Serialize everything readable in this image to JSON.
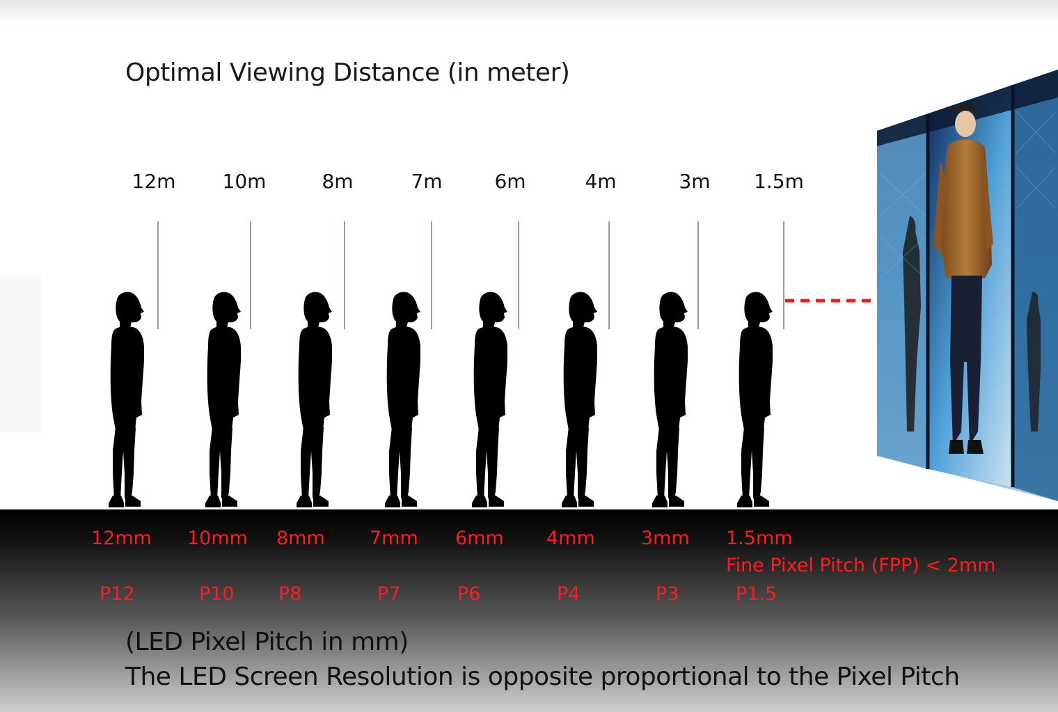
{
  "title": "Optimal Viewing Distance (in meter)",
  "accent_color": "#ff1c1c",
  "guide_line_color": "#8f9ea1",
  "distances": [
    "12m",
    "10m",
    "8m",
    "7m",
    "6m",
    "4m",
    "3m",
    "1.5m"
  ],
  "pitches_mm": [
    "12mm",
    "10mm",
    "8mm",
    "7mm",
    "6mm",
    "4mm",
    "3mm",
    "1.5mm"
  ],
  "pitch_codes": [
    "P12",
    "P10",
    "P8",
    "P7",
    "P6",
    "P4",
    "P3",
    "P1.5"
  ],
  "fpp_note": "Fine Pixel Pitch (FPP) < 2mm",
  "footer": {
    "line1": "(LED Pixel Pitch in mm)",
    "line2": "The LED Screen Resolution is opposite proportional to the Pixel Pitch"
  },
  "icons": {
    "person": "standing-person-silhouette-icon",
    "screen": "led-video-wall-image",
    "arrow": "dashed-arrow-right-icon"
  }
}
